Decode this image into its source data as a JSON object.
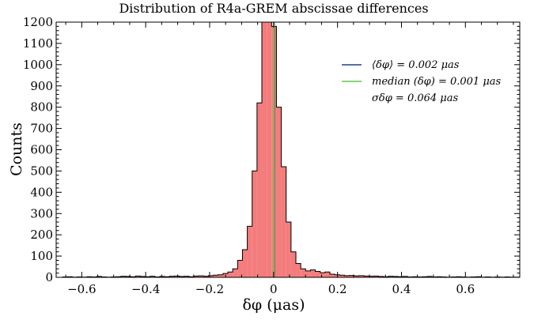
{
  "chart_data": {
    "type": "bar",
    "title": "Distribution of R4a-GREM abscissae differences",
    "xlabel": "δφ (μas)",
    "ylabel": "Counts",
    "xlim": [
      -0.68,
      0.77
    ],
    "ylim": [
      0,
      1200
    ],
    "xticks": [
      -0.6,
      -0.4,
      -0.2,
      0,
      0.2,
      0.4,
      0.6
    ],
    "xtick_labels": [
      "−0.6",
      "−0.4",
      "−0.2",
      "0",
      "0.2",
      "0.4",
      "0.6"
    ],
    "yticks": [
      0,
      100,
      200,
      300,
      400,
      500,
      600,
      700,
      800,
      900,
      1000,
      1100,
      1200
    ],
    "ytick_labels": [
      "0",
      "100",
      "200",
      "300",
      "400",
      "500",
      "600",
      "700",
      "800",
      "900",
      "1000",
      "1100",
      "1200"
    ],
    "bin_start": -0.675,
    "bin_width": 0.0152,
    "counts": [
      0,
      2,
      3,
      1,
      2,
      1,
      3,
      2,
      4,
      2,
      1,
      2,
      3,
      5,
      4,
      3,
      6,
      4,
      3,
      5,
      2,
      4,
      3,
      5,
      6,
      4,
      5,
      3,
      6,
      7,
      5,
      8,
      10,
      12,
      18,
      25,
      40,
      80,
      130,
      240,
      500,
      820,
      1260,
      1260,
      1180,
      800,
      520,
      260,
      120,
      65,
      40,
      30,
      35,
      28,
      22,
      25,
      15,
      12,
      10,
      8,
      9,
      7,
      8,
      6,
      5,
      6,
      4,
      3,
      5,
      4,
      3,
      4,
      2,
      3,
      2,
      3,
      4,
      2,
      3,
      2,
      1,
      2,
      3,
      2,
      1,
      2,
      3,
      1,
      2,
      1,
      2,
      1,
      2,
      1,
      1
    ],
    "hist_color": "#f47c7c",
    "hist_edge_color": "#000000",
    "vlines": [
      {
        "x": 0.002,
        "color": "#1f3f8f"
      },
      {
        "x": 0.001,
        "color": "#5fc84a"
      }
    ],
    "legend": {
      "position": "upper right",
      "entries": [
        {
          "label": "⟨δφ⟩ = 0.002 μas",
          "color": "#1f3f8f",
          "has_line": true
        },
        {
          "label": "median (δφ) = 0.001 μas",
          "color": "#5fc84a",
          "has_line": true
        },
        {
          "label": "σδφ = 0.064 μas",
          "color": "",
          "has_line": false
        }
      ]
    }
  }
}
